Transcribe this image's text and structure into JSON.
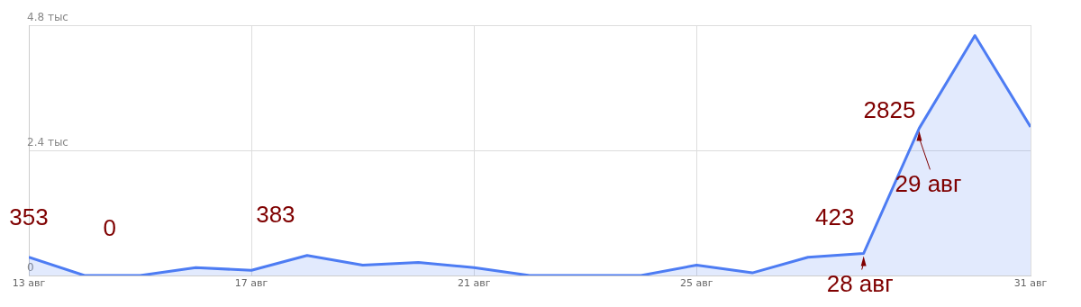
{
  "chart_data": {
    "type": "area",
    "x": [
      "--08-13",
      "--08-14",
      "--08-15",
      "--08-16",
      "--08-17",
      "--08-18",
      "--08-19",
      "--08-20",
      "--08-21",
      "--08-22",
      "--08-23",
      "--08-24",
      "--08-25",
      "--08-26",
      "--08-27",
      "--08-28",
      "--08-29",
      "--08-30",
      "--08-31"
    ],
    "series": [
      {
        "color": "#4d7cf3",
        "values": [
          0.353,
          0,
          0,
          0.15,
          0.1,
          0.383,
          0.2,
          0.25,
          0.15,
          0,
          0,
          0,
          0.2,
          0.05,
          0.35,
          0.423,
          2.825,
          4.6,
          2.85
        ]
      }
    ],
    "xlim": [
      "--08-13",
      "--08-31"
    ],
    "xticks": [
      {
        "value": "--08-13",
        "label": "13 авг"
      },
      {
        "value": "--08-17",
        "label": "17 авг"
      },
      {
        "value": "--08-21",
        "label": "21 авг"
      },
      {
        "value": "--08-25",
        "label": "25 авг"
      },
      {
        "value": "--08-31",
        "label": "31 авг"
      }
    ],
    "ylim": [
      0,
      4.8
    ],
    "yticks": [
      0,
      {
        "value": 2.4,
        "label": "2.4 тыс"
      },
      {
        "value": 4.8,
        "label": "4.8 тыс"
      }
    ],
    "grid": true,
    "legend": false,
    "marker": "none",
    "line_style": "solid",
    "annotations": [
      {
        "text": "353",
        "x": "--08-13",
        "y": 0.353
      },
      {
        "text": "0",
        "x": "--08-14",
        "y": 0
      },
      {
        "text": "383",
        "x": "--08-18",
        "y": 0.383
      },
      {
        "text": "423",
        "x": "--08-28",
        "y": 0.423
      },
      {
        "text": "28 авг",
        "x": "--08-28",
        "y": 0.423
      },
      {
        "text": "2825",
        "x": "--08-29",
        "y": 2.825
      },
      {
        "text": "29 авг",
        "x": "--08-29",
        "y": 2.825
      }
    ]
  }
}
